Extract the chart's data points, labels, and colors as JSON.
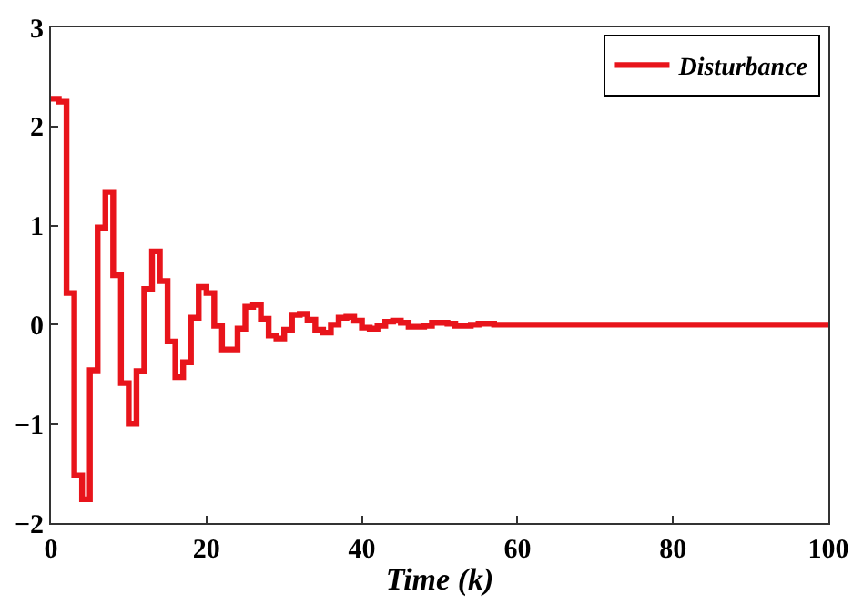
{
  "chart_data": {
    "type": "step",
    "xlabel": "Time (k)",
    "xlim": [
      0,
      100
    ],
    "xticks": [
      0,
      20,
      40,
      60,
      80,
      100
    ],
    "ylim": [
      -2,
      3
    ],
    "yticks": [
      -2,
      -1,
      0,
      1,
      2,
      3
    ],
    "legend": "top right",
    "marker": "none",
    "line_style": "solid",
    "x": [
      0,
      1,
      2,
      3,
      4,
      5,
      6,
      7,
      8,
      9,
      10,
      11,
      12,
      13,
      14,
      15,
      16,
      17,
      18,
      19,
      20,
      21,
      22,
      23,
      24,
      25,
      26,
      27,
      28,
      29,
      30,
      31,
      32,
      33,
      34,
      35,
      36,
      37,
      38,
      39,
      40,
      41,
      42,
      43,
      44,
      45,
      46,
      47,
      48,
      49,
      50,
      51,
      52,
      53,
      54,
      55,
      56,
      57,
      58,
      59,
      60,
      61,
      62,
      63,
      64,
      65,
      66,
      67,
      68,
      69,
      70,
      71,
      72,
      73,
      74,
      75,
      76,
      77,
      78,
      79,
      80,
      81,
      82,
      83,
      84,
      85,
      86,
      87,
      88,
      89,
      90,
      91,
      92,
      93,
      94,
      95,
      96,
      97,
      98,
      99,
      100
    ],
    "series": [
      {
        "name": "Disturbance",
        "color": "#e8141b",
        "values": [
          2.28,
          2.25,
          0.32,
          -1.52,
          -1.76,
          -0.46,
          0.98,
          1.34,
          0.5,
          -0.59,
          -1.0,
          -0.47,
          0.36,
          0.74,
          0.44,
          -0.17,
          -0.53,
          -0.38,
          0.07,
          0.38,
          0.32,
          -0.01,
          -0.25,
          -0.25,
          -0.04,
          0.18,
          0.2,
          0.06,
          -0.11,
          -0.14,
          -0.05,
          0.1,
          0.11,
          0.05,
          -0.05,
          -0.08,
          0.0,
          0.07,
          0.08,
          0.04,
          -0.03,
          -0.04,
          -0.01,
          0.03,
          0.04,
          0.02,
          -0.02,
          -0.02,
          -0.01,
          0.02,
          0.02,
          0.01,
          -0.01,
          -0.01,
          0.0,
          0.01,
          0.01,
          0.0,
          0.0,
          0.0,
          0.0,
          0.0,
          0.0,
          0.0,
          0.0,
          0.0,
          0.0,
          0.0,
          0.0,
          0.0,
          0.0,
          0.0,
          0.0,
          0.0,
          0.0,
          0.0,
          0.0,
          0.0,
          0.0,
          0.0,
          0.0,
          0.0,
          0.0,
          0.0,
          0.0,
          0.0,
          0.0,
          0.0,
          0.0,
          0.0,
          0.0,
          0.0,
          0.0,
          0.0,
          0.0,
          0.0,
          0.0,
          0.0,
          0.0,
          0.0,
          0.0
        ]
      }
    ]
  }
}
